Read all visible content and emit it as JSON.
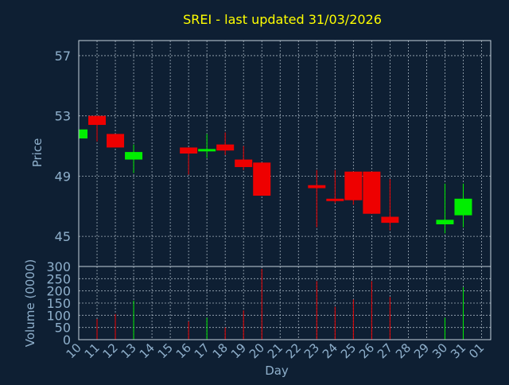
{
  "colors": {
    "background": "#0e1f33",
    "title": "#ffff00",
    "axis_text": "#8fb0cc",
    "frame": "#c7d3dd",
    "grid": "#c7d3dd",
    "up": "#00ee00",
    "down": "#ee0000"
  },
  "chart_data": [
    {
      "type": "candlestick",
      "title": "SREI - last updated 31/03/2026",
      "ylabel": "Price",
      "ylim": [
        43,
        58
      ],
      "yticks": [
        45,
        49,
        53,
        57
      ],
      "grid": true,
      "x_ticks": [
        "10",
        "11",
        "12",
        "13",
        "14",
        "15",
        "16",
        "17",
        "18",
        "19",
        "20",
        "21",
        "22",
        "23",
        "24",
        "25",
        "26",
        "27",
        "28",
        "29",
        "30",
        "31",
        "01"
      ],
      "candles": [
        {
          "day": "10",
          "open": 51.5,
          "close": 52.1,
          "high": 52.1,
          "low": 51.5
        },
        {
          "day": "11",
          "open": 53.0,
          "close": 52.4,
          "high": 53.0,
          "low": 51.3
        },
        {
          "day": "12",
          "open": 51.8,
          "close": 50.9,
          "high": 51.8,
          "low": 50.9
        },
        {
          "day": "13",
          "open": 50.1,
          "close": 50.6,
          "high": 51.1,
          "low": 49.2
        },
        {
          "day": "16",
          "open": 50.9,
          "close": 50.5,
          "high": 50.9,
          "low": 49.1
        },
        {
          "day": "17",
          "open": 50.7,
          "close": 50.8,
          "high": 51.8,
          "low": 50.2
        },
        {
          "day": "18",
          "open": 51.1,
          "close": 50.7,
          "high": 51.9,
          "low": 50.4
        },
        {
          "day": "19",
          "open": 50.1,
          "close": 49.6,
          "high": 51.0,
          "low": 49.4
        },
        {
          "day": "20",
          "open": 49.9,
          "close": 47.7,
          "high": 49.9,
          "low": 47.7
        },
        {
          "day": "23",
          "open": 48.4,
          "close": 48.2,
          "high": 49.4,
          "low": 45.6
        },
        {
          "day": "24",
          "open": 47.5,
          "close": 47.4,
          "high": 49.4,
          "low": 47.2
        },
        {
          "day": "25",
          "open": 49.3,
          "close": 47.4,
          "high": 49.3,
          "low": 47.1
        },
        {
          "day": "26",
          "open": 49.3,
          "close": 46.5,
          "high": 49.3,
          "low": 46.5
        },
        {
          "day": "27",
          "open": 46.3,
          "close": 45.9,
          "high": 48.8,
          "low": 45.4
        },
        {
          "day": "30",
          "open": 45.8,
          "close": 46.1,
          "high": 48.5,
          "low": 45.2
        },
        {
          "day": "31",
          "open": 46.4,
          "close": 47.5,
          "high": 48.5,
          "low": 45.6
        }
      ]
    },
    {
      "type": "bar",
      "ylabel": "Volume (0000)",
      "xlabel": "Day",
      "ylim": [
        0,
        300
      ],
      "yticks": [
        0,
        50,
        100,
        150,
        200,
        250,
        300
      ],
      "grid": true,
      "categories": [
        "10",
        "11",
        "12",
        "13",
        "16",
        "17",
        "18",
        "19",
        "20",
        "23",
        "24",
        "25",
        "26",
        "27",
        "30",
        "31"
      ],
      "values": [
        0,
        85,
        105,
        160,
        75,
        90,
        50,
        120,
        290,
        240,
        135,
        165,
        240,
        175,
        90,
        215
      ]
    }
  ]
}
